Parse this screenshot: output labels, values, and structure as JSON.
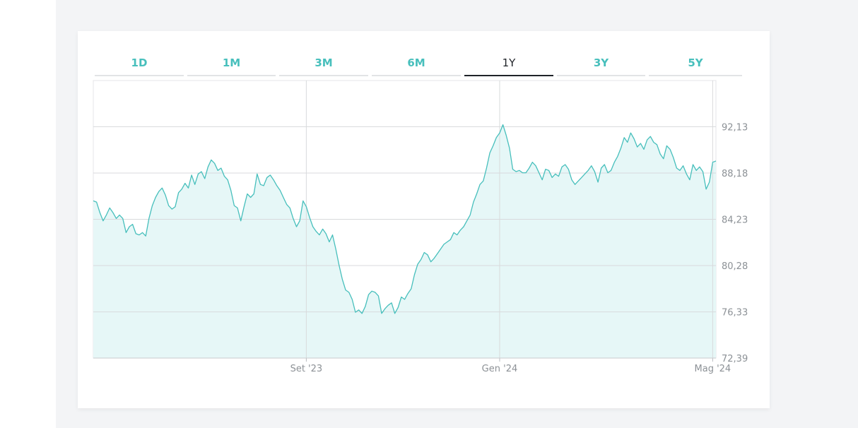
{
  "tabs": [
    {
      "label": "1D",
      "active": false
    },
    {
      "label": "1M",
      "active": false
    },
    {
      "label": "3M",
      "active": false
    },
    {
      "label": "6M",
      "active": false
    },
    {
      "label": "1Y",
      "active": true
    },
    {
      "label": "3Y",
      "active": false
    },
    {
      "label": "5Y",
      "active": false
    }
  ],
  "colors": {
    "accent": "#47bfbc",
    "fill": "#e6f7f7",
    "grid": "#d8dadc",
    "active_tab": "#1f2328"
  },
  "chart_data": {
    "type": "area",
    "y_ticks": [
      "92,13",
      "88,18",
      "84,23",
      "80,28",
      "76,33",
      "72,39"
    ],
    "y_tick_values": [
      92.13,
      88.18,
      84.23,
      80.28,
      76.33,
      72.39
    ],
    "ylim": [
      72.39,
      96.07
    ],
    "x_ticks": [
      {
        "label": "Set '23",
        "index": 65
      },
      {
        "label": "Gen '24",
        "index": 124
      },
      {
        "label": "Mag '24",
        "index": 189
      }
    ],
    "grid": true,
    "series": [
      {
        "values": [
          85.8,
          85.7,
          84.8,
          84.1,
          84.6,
          85.2,
          84.8,
          84.3,
          84.6,
          84.3,
          83.1,
          83.6,
          83.8,
          83.0,
          82.9,
          83.1,
          82.8,
          84.3,
          85.4,
          86.1,
          86.6,
          86.9,
          86.3,
          85.4,
          85.1,
          85.3,
          86.5,
          86.8,
          87.3,
          86.9,
          88.0,
          87.2,
          88.1,
          88.3,
          87.7,
          88.7,
          89.3,
          89.0,
          88.4,
          88.6,
          87.9,
          87.6,
          86.7,
          85.4,
          85.2,
          84.1,
          85.3,
          86.4,
          86.1,
          86.4,
          88.1,
          87.2,
          87.1,
          87.8,
          88.0,
          87.6,
          87.1,
          86.7,
          86.1,
          85.5,
          85.2,
          84.3,
          83.6,
          84.1,
          85.8,
          85.3,
          84.4,
          83.6,
          83.2,
          82.9,
          83.4,
          83.0,
          82.3,
          82.9,
          81.7,
          80.3,
          79.1,
          78.2,
          78.0,
          77.4,
          76.3,
          76.5,
          76.2,
          76.8,
          77.8,
          78.1,
          78.0,
          77.7,
          76.2,
          76.6,
          76.9,
          77.1,
          76.2,
          76.7,
          77.6,
          77.4,
          77.9,
          78.3,
          79.5,
          80.4,
          80.8,
          81.4,
          81.2,
          80.6,
          80.9,
          81.3,
          81.7,
          82.1,
          82.3,
          82.5,
          83.1,
          82.9,
          83.3,
          83.6,
          84.1,
          84.6,
          85.7,
          86.4,
          87.2,
          87.5,
          88.6,
          89.9,
          90.5,
          91.2,
          91.6,
          92.3,
          91.4,
          90.3,
          88.5,
          88.3,
          88.4,
          88.2,
          88.2,
          88.6,
          89.1,
          88.8,
          88.2,
          87.6,
          88.5,
          88.4,
          87.8,
          88.1,
          87.9,
          88.7,
          88.9,
          88.5,
          87.6,
          87.2,
          87.5,
          87.8,
          88.1,
          88.4,
          88.8,
          88.3,
          87.4,
          88.6,
          88.9,
          88.2,
          88.4,
          89.1,
          89.6,
          90.3,
          91.2,
          90.8,
          91.6,
          91.1,
          90.4,
          90.7,
          90.2,
          91.0,
          91.3,
          90.8,
          90.6,
          89.8,
          89.4,
          90.5,
          90.2,
          89.5,
          88.6,
          88.4,
          88.8,
          88.1,
          87.6,
          88.9,
          88.4,
          88.7,
          88.3,
          86.8,
          87.4,
          89.1,
          89.2
        ]
      }
    ]
  }
}
